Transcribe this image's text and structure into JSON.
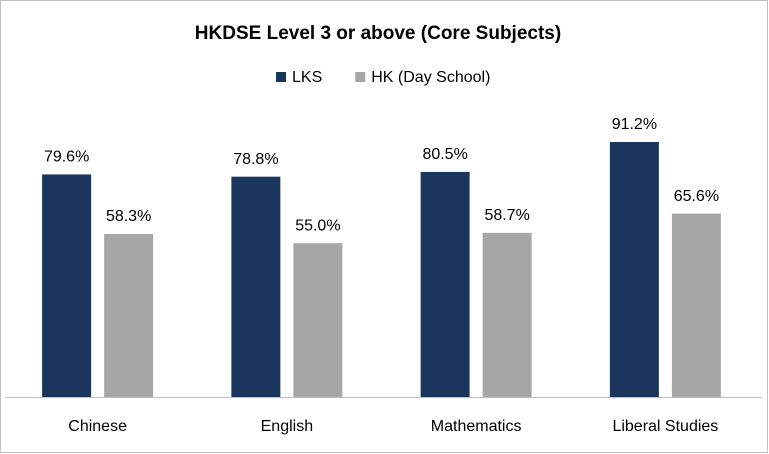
{
  "chart_data": {
    "type": "bar",
    "title": "HKDSE Level 3 or above (Core Subjects)",
    "categories": [
      "Chinese",
      "English",
      "Mathematics",
      "Liberal Studies"
    ],
    "series": [
      {
        "name": "LKS",
        "color": "#1b365d",
        "values": [
          79.6,
          78.8,
          80.5,
          91.2
        ],
        "value_labels": [
          "79.6%",
          "78.8%",
          "80.5%",
          "91.2%"
        ]
      },
      {
        "name": "HK (Day School)",
        "color": "#a6a6a6",
        "values": [
          58.3,
          55.0,
          58.7,
          65.6
        ],
        "value_labels": [
          "58.3%",
          "55.0%",
          "58.7%",
          "65.6%"
        ]
      }
    ]
  }
}
